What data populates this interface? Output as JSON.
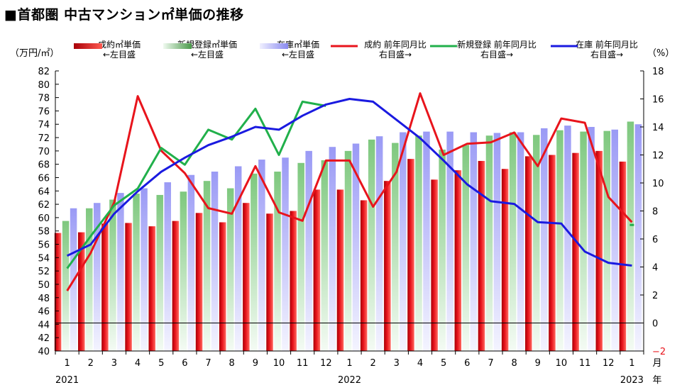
{
  "title": "■首都圏 中古マンション㎡単価の推移",
  "y_left_unit": "（万円/㎡）",
  "y_right_unit": "（%）",
  "x_unit_month": "月",
  "x_unit_year": "年",
  "legend": [
    {
      "label": "成約㎡単価",
      "sub": "←左目盛"
    },
    {
      "label": "新規登録㎡単価",
      "sub": "←左目盛"
    },
    {
      "label": "在庫㎡単価",
      "sub": "←左目盛"
    },
    {
      "label": "成約 前年同月比",
      "sub": "右目盛→"
    },
    {
      "label": "新規登録 前年同月比",
      "sub": "右目盛→"
    },
    {
      "label": "在庫 前年同月比",
      "sub": "右目盛→"
    }
  ],
  "colors": {
    "contract": "#e8141c",
    "new": "#21b04b",
    "stock": "#1a1ae0",
    "stock_bar": "#9a9af5",
    "new_bar": "#7ec87e",
    "neg_tick": "#e8141c"
  },
  "chart_data": {
    "type": "bar",
    "categories": [
      "1",
      "2",
      "3",
      "4",
      "5",
      "6",
      "7",
      "8",
      "9",
      "10",
      "11",
      "12",
      "1",
      "2",
      "3",
      "4",
      "5",
      "6",
      "7",
      "8",
      "9",
      "10",
      "11",
      "12",
      "1"
    ],
    "year_labels": [
      {
        "index": 0,
        "label": "2021"
      },
      {
        "index": 12,
        "label": "2022"
      },
      {
        "index": 24,
        "label": "2023"
      }
    ],
    "y_left": {
      "min": 40,
      "max": 82,
      "step": 2
    },
    "y_right": {
      "min": -2,
      "max": 18,
      "step": 2,
      "tick_labels": [
        "18",
        "16",
        "14",
        "12",
        "10",
        "8",
        "6",
        "4",
        "2",
        "0",
        "−2"
      ]
    },
    "bar_series": [
      {
        "name": "成約㎡単価",
        "axis": "left",
        "values": [
          57.7,
          57.8,
          59.1,
          59.2,
          58.7,
          59.5,
          60.7,
          59.3,
          62.2,
          60.6,
          61.0,
          64.2,
          64.2,
          62.6,
          65.5,
          68.8,
          65.7,
          67.1,
          68.5,
          67.3,
          69.2,
          69.4,
          69.7,
          70.0,
          68.4
        ]
      },
      {
        "name": "新規登録㎡単価",
        "axis": "left",
        "values": [
          59.5,
          61.4,
          62.7,
          63.6,
          63.4,
          63.9,
          65.5,
          64.4,
          66.6,
          66.9,
          68.2,
          68.6,
          70.0,
          71.7,
          71.2,
          72.3,
          70.2,
          70.9,
          72.3,
          72.8,
          72.4,
          73.1,
          72.9,
          73.0,
          74.4
        ]
      },
      {
        "name": "在庫㎡単価",
        "axis": "left",
        "values": [
          61.4,
          62.2,
          63.7,
          64.4,
          65.3,
          66.4,
          66.9,
          67.7,
          68.7,
          69.0,
          70.0,
          70.6,
          71.1,
          72.2,
          72.8,
          72.9,
          72.9,
          72.8,
          72.7,
          72.8,
          73.4,
          73.8,
          73.6,
          73.2,
          74.0
        ]
      }
    ],
    "line_series": [
      {
        "name": "成約 前年同月比",
        "axis": "right",
        "values": [
          2.3,
          5.0,
          8.6,
          16.2,
          12.3,
          10.7,
          8.2,
          7.8,
          11.2,
          7.9,
          7.3,
          11.6,
          11.6,
          8.3,
          10.8,
          16.4,
          12.0,
          12.8,
          12.9,
          13.6,
          11.2,
          14.6,
          14.3,
          9.0,
          7.2
        ]
      },
      {
        "name": "新規登録 前年同月比",
        "axis": "right",
        "values": [
          3.9,
          6.2,
          8.4,
          9.6,
          12.5,
          11.3,
          13.8,
          13.1,
          15.3,
          12.0,
          15.8,
          15.5,
          null,
          null,
          null,
          null,
          null,
          null,
          null,
          null,
          null,
          null,
          null,
          null,
          null
        ],
        "extra_points": [
          {
            "x": 24,
            "value": 7.0
          }
        ]
      },
      {
        "name": "在庫 前年同月比",
        "axis": "right",
        "values": [
          4.8,
          5.6,
          7.8,
          9.4,
          10.8,
          11.8,
          12.7,
          13.3,
          14.0,
          13.8,
          14.8,
          15.6,
          16.0,
          15.8,
          14.5,
          13.2,
          11.6,
          9.9,
          8.7,
          8.5,
          7.2,
          7.1,
          5.1,
          4.3,
          4.1
        ]
      }
    ],
    "grid": false
  }
}
